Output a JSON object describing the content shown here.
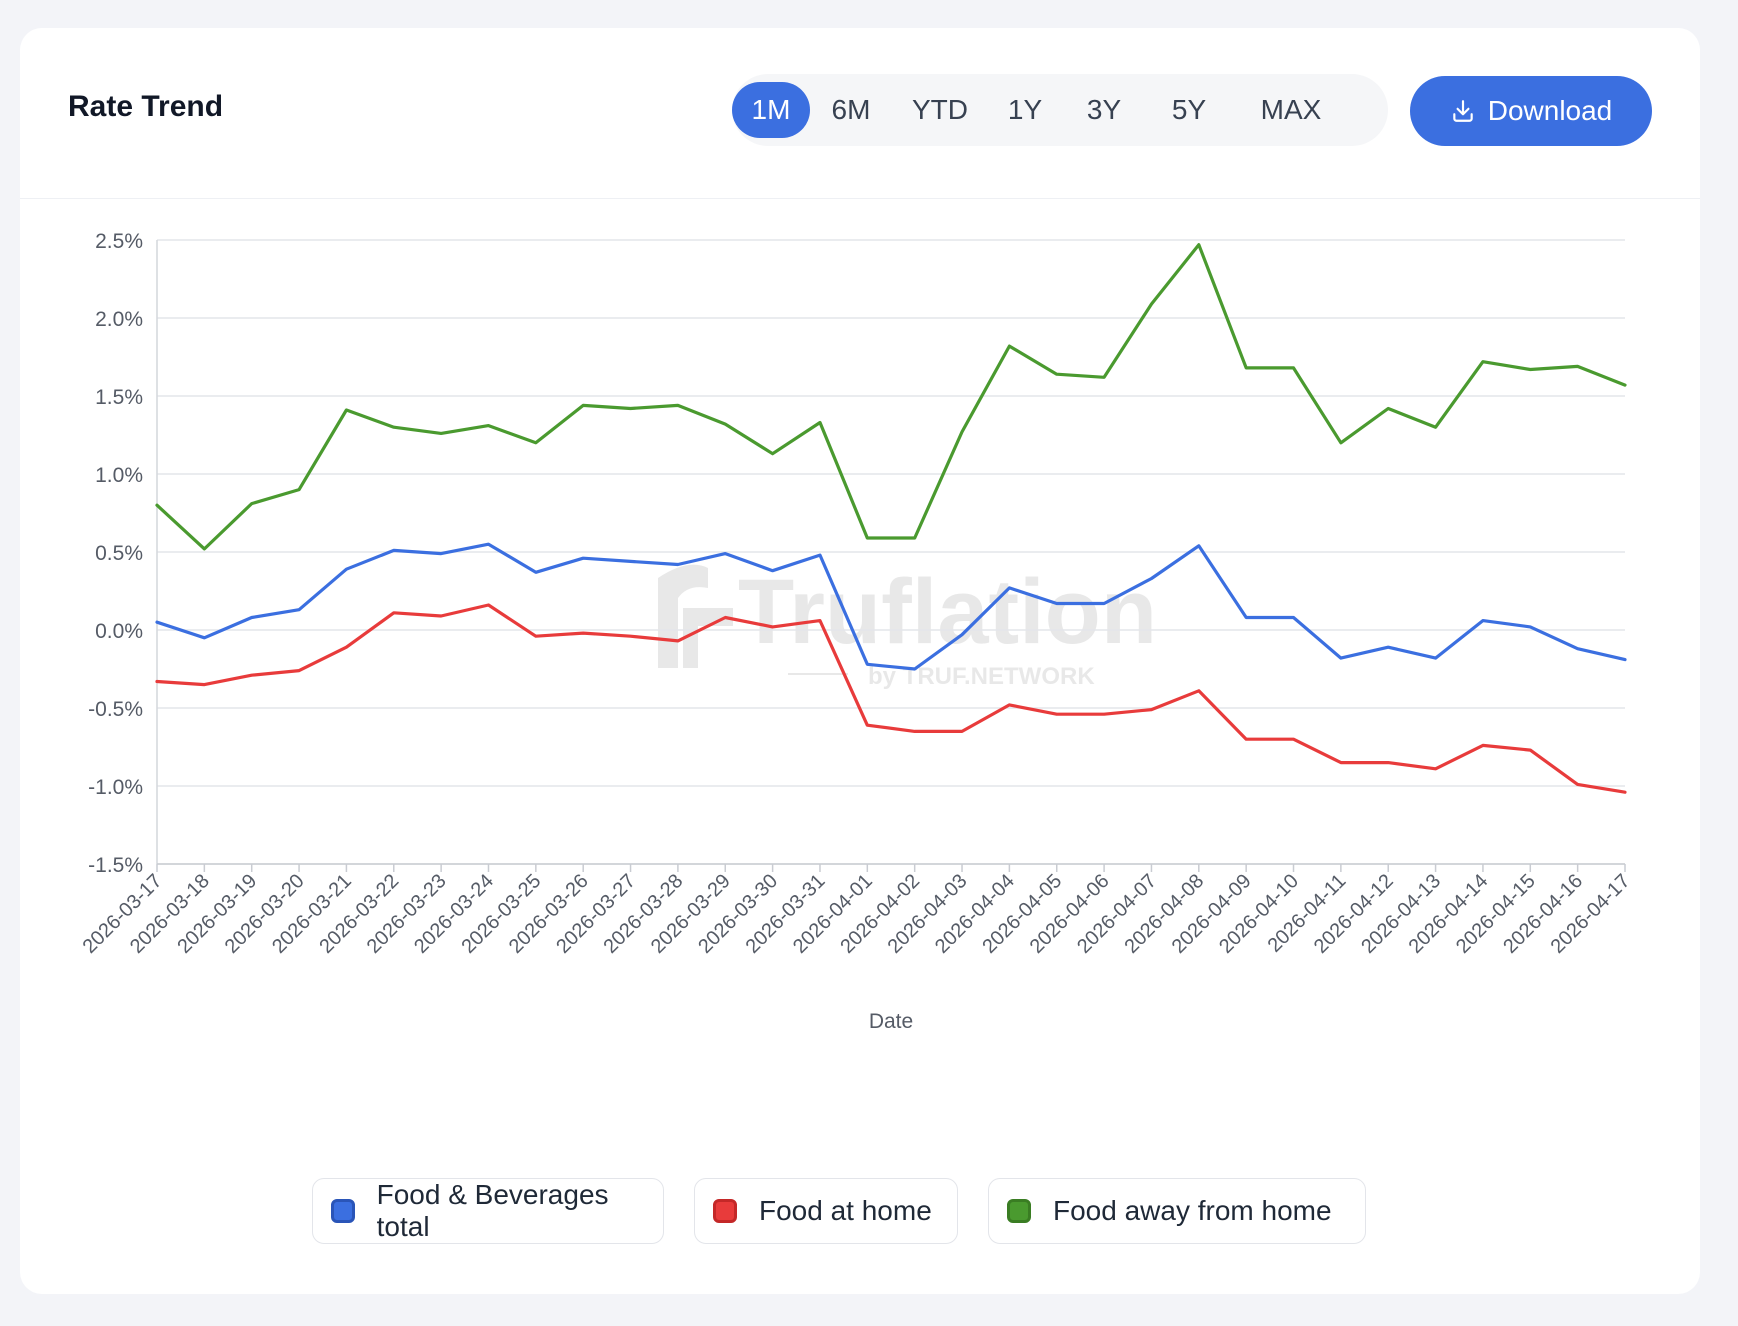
{
  "header": {
    "title": "Rate Trend",
    "ranges": [
      "1M",
      "6M",
      "YTD",
      "1Y",
      "3Y",
      "5Y",
      "MAX"
    ],
    "active_range": "1M",
    "download_label": "Download"
  },
  "watermark": {
    "brand": "Truflation",
    "sub": "by TRUF.NETWORK"
  },
  "colors": {
    "accent": "#3b6fe0",
    "series_blue": "#3b6fe0",
    "series_red": "#e83b3b",
    "series_green": "#4a9a2f"
  },
  "chart_data": {
    "type": "line",
    "title": "Rate Trend",
    "xlabel": "Date",
    "ylabel": "",
    "ylim": [
      -1.5,
      2.5
    ],
    "y_ticks": [
      -1.5,
      -1.0,
      -0.5,
      0.0,
      0.5,
      1.0,
      1.5,
      2.0,
      2.5
    ],
    "y_tick_labels": [
      "-1.5%",
      "-1.0%",
      "-0.5%",
      "0.0%",
      "0.5%",
      "1.0%",
      "1.5%",
      "2.0%",
      "2.5%"
    ],
    "grid": true,
    "legend_position": "bottom",
    "categories": [
      "2026-03-17",
      "2026-03-18",
      "2026-03-19",
      "2026-03-20",
      "2026-03-21",
      "2026-03-22",
      "2026-03-23",
      "2026-03-24",
      "2026-03-25",
      "2026-03-26",
      "2026-03-27",
      "2026-03-28",
      "2026-03-29",
      "2026-03-30",
      "2026-03-31",
      "2026-04-01",
      "2026-04-02",
      "2026-04-03",
      "2026-04-04",
      "2026-04-05",
      "2026-04-06",
      "2026-04-07",
      "2026-04-08",
      "2026-04-09",
      "2026-04-10",
      "2026-04-11",
      "2026-04-12",
      "2026-04-13",
      "2026-04-14",
      "2026-04-15",
      "2026-04-16",
      "2026-04-17"
    ],
    "series": [
      {
        "name": "Food & Beverages total",
        "color": "#3b6fe0",
        "values": [
          0.05,
          -0.05,
          0.08,
          0.13,
          0.39,
          0.51,
          0.49,
          0.55,
          0.37,
          0.46,
          0.44,
          0.42,
          0.49,
          0.38,
          0.48,
          -0.22,
          -0.25,
          -0.03,
          0.27,
          0.17,
          0.17,
          0.33,
          0.54,
          0.08,
          0.08,
          -0.18,
          -0.11,
          -0.18,
          0.06,
          0.02,
          -0.12,
          -0.19
        ]
      },
      {
        "name": "Food at home",
        "color": "#e83b3b",
        "values": [
          -0.33,
          -0.35,
          -0.29,
          -0.26,
          -0.11,
          0.11,
          0.09,
          0.16,
          -0.04,
          -0.02,
          -0.04,
          -0.07,
          0.08,
          0.02,
          0.06,
          -0.61,
          -0.65,
          -0.65,
          -0.48,
          -0.54,
          -0.54,
          -0.51,
          -0.39,
          -0.7,
          -0.7,
          -0.85,
          -0.85,
          -0.89,
          -0.74,
          -0.77,
          -0.99,
          -1.04
        ]
      },
      {
        "name": "Food away from home",
        "color": "#4a9a2f",
        "values": [
          0.8,
          0.52,
          0.81,
          0.9,
          1.41,
          1.3,
          1.26,
          1.31,
          1.2,
          1.44,
          1.42,
          1.44,
          1.32,
          1.13,
          1.33,
          0.59,
          0.59,
          1.27,
          1.82,
          1.64,
          1.62,
          2.09,
          2.47,
          1.68,
          1.68,
          1.2,
          1.42,
          1.3,
          1.72,
          1.67,
          1.69,
          1.57
        ]
      }
    ]
  }
}
